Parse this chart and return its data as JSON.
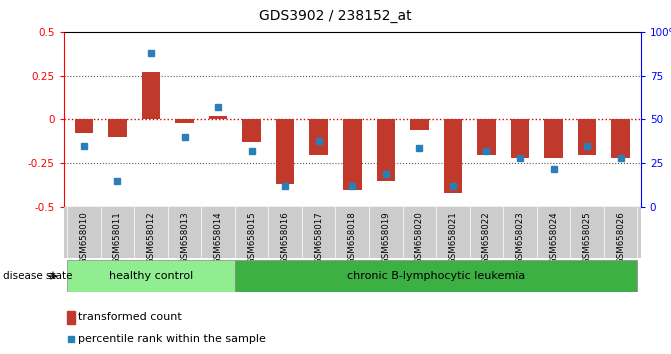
{
  "title": "GDS3902 / 238152_at",
  "samples": [
    "GSM658010",
    "GSM658011",
    "GSM658012",
    "GSM658013",
    "GSM658014",
    "GSM658015",
    "GSM658016",
    "GSM658017",
    "GSM658018",
    "GSM658019",
    "GSM658020",
    "GSM658021",
    "GSM658022",
    "GSM658023",
    "GSM658024",
    "GSM658025",
    "GSM658026"
  ],
  "bar_values": [
    -0.08,
    -0.1,
    0.27,
    -0.02,
    0.02,
    -0.13,
    -0.37,
    -0.2,
    -0.4,
    -0.35,
    -0.06,
    -0.42,
    -0.2,
    -0.22,
    -0.22,
    -0.2,
    -0.22
  ],
  "percentile_values": [
    35,
    15,
    88,
    40,
    57,
    32,
    12,
    38,
    12,
    19,
    34,
    12,
    32,
    28,
    22,
    35,
    28
  ],
  "bar_color": "#c0392b",
  "dot_color": "#2980b9",
  "ylim_left": [
    -0.5,
    0.5
  ],
  "ylim_right": [
    0,
    100
  ],
  "yticks_left": [
    -0.5,
    -0.25,
    0,
    0.25,
    0.5
  ],
  "yticks_right": [
    0,
    25,
    50,
    75,
    100
  ],
  "group1_label": "healthy control",
  "group2_label": "chronic B-lymphocytic leukemia",
  "group1_count": 5,
  "group1_color": "#90EE90",
  "group2_color": "#3CB043",
  "disease_state_label": "disease state",
  "legend_bar": "transformed count",
  "legend_dot": "percentile rank within the sample",
  "zero_line_color": "#cc0000",
  "dotted_line_color": "#555555",
  "xtick_bg": "#cccccc",
  "bar_width": 0.55
}
